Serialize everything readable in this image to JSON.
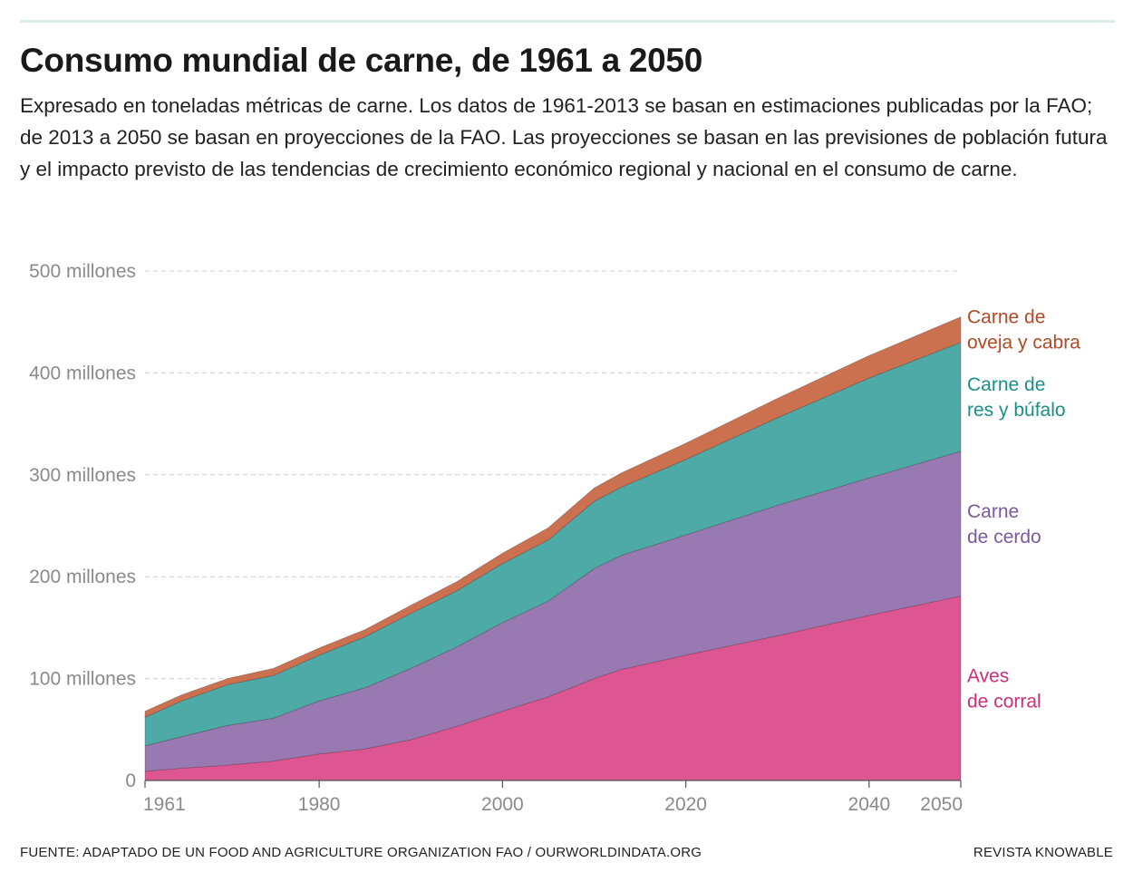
{
  "header": {
    "title": "Consumo mundial de carne, de 1961 a 2050",
    "subtitle": "Expresado en toneladas métricas de carne. Los datos de 1961-2013 se basan en estimaciones publicadas por la FAO; de 2013 a 2050 se basan en proyecciones de la FAO. Las proyecciones se basan en las previsiones de población futura y el impacto previsto de las tendencias de crecimiento económico regional y nacional en el consumo de carne."
  },
  "footer": {
    "source": "FUENTE: ADAPTADO DE UN FOOD AND AGRICULTURE ORGANIZATION FAO / OURWORLDINDATA.ORG",
    "credit": "REVISTA KNOWABLE"
  },
  "chart_data": {
    "type": "area",
    "stacked": true,
    "title": "Consumo mundial de carne, de 1961 a 2050",
    "xlabel": "",
    "ylabel": "",
    "xlim": [
      1961,
      2050
    ],
    "ylim": [
      0,
      500000000
    ],
    "x_ticks": [
      1961,
      1980,
      2000,
      2020,
      2040,
      2050
    ],
    "y_ticks": [
      {
        "value": 0,
        "label": "0"
      },
      {
        "value": 100000000,
        "label": "100 millones"
      },
      {
        "value": 200000000,
        "label": "200 millones"
      },
      {
        "value": 300000000,
        "label": "300 millones"
      },
      {
        "value": 400000000,
        "label": "400 millones"
      },
      {
        "value": 500000000,
        "label": "500 millones"
      }
    ],
    "grid": "horizontal-dashed",
    "legend": "right-inline",
    "x": [
      1961,
      1965,
      1970,
      1975,
      1980,
      1985,
      1990,
      1995,
      2000,
      2005,
      2010,
      2013,
      2020,
      2030,
      2040,
      2050
    ],
    "series": [
      {
        "name": "Aves de corral",
        "label_lines": [
          "Aves",
          "de corral"
        ],
        "color": "#dd5591",
        "label_color": "#cc2f79",
        "values": [
          9000000,
          12000000,
          15000000,
          19000000,
          26000000,
          31000000,
          40000000,
          53000000,
          68000000,
          82000000,
          100000000,
          109000000,
          123000000,
          142000000,
          162000000,
          181000000
        ]
      },
      {
        "name": "Carne de cerdo",
        "label_lines": [
          "Carne",
          "de cerdo"
        ],
        "color": "#9879b1",
        "label_color": "#7a5a9c",
        "values": [
          25000000,
          31000000,
          39000000,
          42000000,
          52000000,
          60000000,
          70000000,
          78000000,
          87000000,
          94000000,
          108000000,
          112000000,
          118000000,
          128000000,
          135000000,
          142000000
        ]
      },
      {
        "name": "Carne de res y búfalo",
        "label_lines": [
          "Carne de",
          "res y búfalo"
        ],
        "color": "#4daaa6",
        "label_color": "#1a8f8a",
        "values": [
          28000000,
          35000000,
          40000000,
          42000000,
          45000000,
          50000000,
          54000000,
          55000000,
          58000000,
          60000000,
          66000000,
          67000000,
          74000000,
          86000000,
          98000000,
          107000000
        ]
      },
      {
        "name": "Carne de oveja y cabra",
        "label_lines": [
          "Carne de",
          "oveja y cabra"
        ],
        "color": "#cc7150",
        "label_color": "#b24a26",
        "values": [
          6000000,
          6000000,
          6000000,
          7000000,
          7000000,
          7000000,
          8000000,
          9000000,
          10000000,
          12000000,
          13000000,
          14000000,
          16000000,
          19000000,
          22000000,
          25000000
        ]
      }
    ]
  }
}
